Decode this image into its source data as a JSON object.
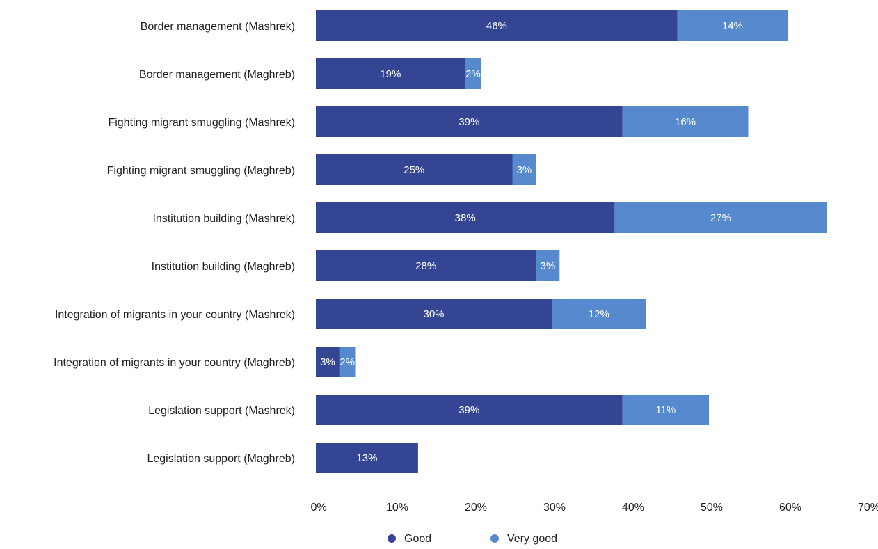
{
  "chart_data": {
    "type": "bar",
    "orientation": "horizontal",
    "stacked": true,
    "categories": [
      "Border management (Mashrek)",
      "Border management (Maghreb)",
      "Fighting migrant smuggling (Mashrek)",
      "Fighting migrant smuggling (Maghreb)",
      "Institution building (Mashrek)",
      "Institution building (Maghreb)",
      "Integration of migrants in your country (Mashrek)",
      "Integration of migrants in your country (Maghreb)",
      "Legislation support (Mashrek)",
      "Legislation support (Maghreb)"
    ],
    "series": [
      {
        "name": "Good",
        "color": "#344593",
        "values": [
          46,
          19,
          39,
          25,
          38,
          28,
          30,
          3,
          39,
          13
        ],
        "labels": [
          "46%",
          "19%",
          "39%",
          "25%",
          "38%",
          "28%",
          "30%",
          "3%",
          "39%",
          "13%"
        ]
      },
      {
        "name": "Very good",
        "color": "#5689CD",
        "values": [
          14,
          2,
          16,
          3,
          27,
          3,
          12,
          2,
          11,
          null
        ],
        "labels": [
          "14%",
          "2%",
          "16%",
          "3%",
          "27%",
          "3%",
          "12%",
          "2%",
          "11%",
          null
        ]
      }
    ],
    "xlim": [
      0,
      70
    ],
    "xticks": [
      0,
      10,
      20,
      30,
      40,
      50,
      60,
      70
    ],
    "xtick_labels": [
      "0%",
      "10%",
      "20%",
      "30%",
      "40%",
      "50%",
      "60%",
      "70%"
    ],
    "grid": false,
    "legend_position": "bottom-center",
    "title": "",
    "xlabel": "",
    "ylabel": ""
  }
}
